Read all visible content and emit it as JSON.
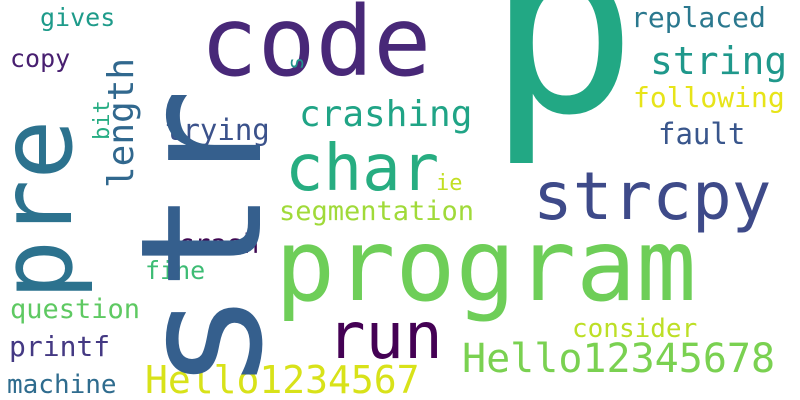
{
  "words": {
    "p": {
      "text": "p",
      "color": "#22a884"
    },
    "str": {
      "text": "str",
      "color": "#355f8d"
    },
    "program": {
      "text": "program",
      "color": "#6ece58"
    },
    "code": {
      "text": "code",
      "color": "#482878"
    },
    "pre": {
      "text": "pre",
      "color": "#2c728e"
    },
    "strcpy": {
      "text": "strcpy",
      "color": "#3e4a89"
    },
    "char": {
      "text": "char",
      "color": "#27ad81"
    },
    "run": {
      "text": "run",
      "color": "#440154"
    },
    "hello12345678": {
      "text": "Hello12345678",
      "color": "#7ad151"
    },
    "hello1234567": {
      "text": "Hello1234567",
      "color": "#d8e219"
    },
    "string": {
      "text": "string",
      "color": "#1f988b"
    },
    "crashing": {
      "text": "crashing",
      "color": "#20a486"
    },
    "length": {
      "text": "length",
      "color": "#31688e"
    },
    "segmentation": {
      "text": "segmentation",
      "color": "#a0da39"
    },
    "following": {
      "text": "following",
      "color": "#e7e419"
    },
    "trying": {
      "text": "trying",
      "color": "#3b528b"
    },
    "fault": {
      "text": "fault",
      "color": "#39568c"
    },
    "replaced": {
      "text": "replaced",
      "color": "#2a788e"
    },
    "question": {
      "text": "question",
      "color": "#5ec962"
    },
    "consider": {
      "text": "consider",
      "color": "#bddf26"
    },
    "printf": {
      "text": "printf",
      "color": "#443983"
    },
    "machine": {
      "text": "machine",
      "color": "#2f6c8e"
    },
    "crash": {
      "text": "crash",
      "color": "#3e0751"
    },
    "fine": {
      "text": "fine",
      "color": "#3dbc74"
    },
    "gives": {
      "text": "gives",
      "color": "#1e9b8a"
    },
    "copy": {
      "text": "copy",
      "color": "#481f70"
    },
    "bit": {
      "text": "bit",
      "color": "#25ac82"
    },
    "ie": {
      "text": "ie",
      "color": "#c2df23"
    },
    "s": {
      "text": "s",
      "color": "#20928c"
    }
  }
}
